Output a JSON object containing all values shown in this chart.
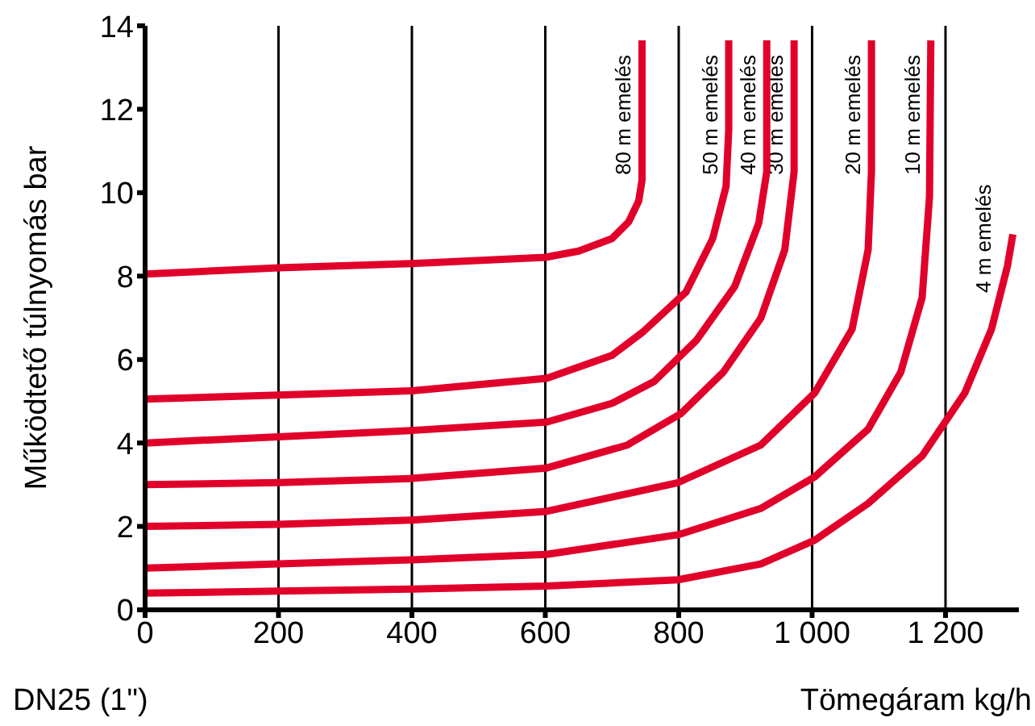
{
  "chart_data": {
    "type": "line",
    "ylabel": "Működtető túlnyomás bar",
    "xlabel": "Tömegáram kg/h",
    "annotations": [
      "DN25 (1\")"
    ],
    "xlim": [
      0,
      1310
    ],
    "xticks": [
      0,
      200,
      400,
      600,
      800,
      {
        "value": 1000,
        "label": "1 000"
      },
      {
        "value": 1200,
        "label": "1 200"
      }
    ],
    "ylim": [
      0,
      14
    ],
    "yticks": [
      0,
      2,
      4,
      6,
      8,
      10,
      12,
      14
    ],
    "grid": true,
    "legend": false,
    "marker": "none",
    "line_style": "solid",
    "series": [
      {
        "name": "80 m emelés",
        "color": "#e0002a",
        "x": [
          0,
          200,
          400,
          600,
          650,
          700,
          725,
          740,
          745,
          745
        ],
        "values": [
          8.05,
          8.2,
          8.3,
          8.45,
          8.6,
          8.9,
          9.3,
          9.8,
          10.3,
          13.65
        ]
      },
      {
        "name": "50 m emelés",
        "color": "#e0002a",
        "x": [
          0,
          200,
          400,
          602,
          700,
          747,
          811,
          851,
          871,
          875,
          875
        ],
        "values": [
          5.05,
          5.15,
          5.25,
          5.55,
          6.1,
          6.67,
          7.62,
          8.9,
          10.15,
          11.5,
          13.65
        ]
      },
      {
        "name": "40 m emelés",
        "color": "#e0002a",
        "x": [
          0,
          200,
          400,
          602,
          700,
          763,
          827,
          884,
          920,
          932,
          932
        ],
        "values": [
          4.0,
          4.15,
          4.3,
          4.5,
          4.95,
          5.47,
          6.47,
          7.75,
          9.27,
          10.5,
          13.65
        ]
      },
      {
        "name": "30 m emelés",
        "color": "#e0002a",
        "x": [
          0,
          200,
          400,
          602,
          723,
          803,
          867,
          923,
          959,
          973,
          973
        ],
        "values": [
          3.0,
          3.05,
          3.15,
          3.4,
          3.95,
          4.7,
          5.7,
          6.99,
          8.63,
          10.5,
          13.65
        ]
      },
      {
        "name": "20 m emelés",
        "color": "#e0002a",
        "x": [
          0,
          200,
          400,
          602,
          799,
          923,
          1004,
          1060,
          1084,
          1089,
          1089
        ],
        "values": [
          2.0,
          2.05,
          2.15,
          2.36,
          3.05,
          3.95,
          5.2,
          6.73,
          8.63,
          10.5,
          13.65
        ]
      },
      {
        "name": "10 m emelés",
        "color": "#e0002a",
        "x": [
          0,
          200,
          400,
          602,
          799,
          923,
          1004,
          1084,
          1133,
          1165,
          1176,
          1178
        ],
        "values": [
          1.0,
          1.1,
          1.2,
          1.33,
          1.8,
          2.43,
          3.19,
          4.33,
          5.7,
          7.49,
          9.9,
          13.65
        ]
      },
      {
        "name": "4 m emelés",
        "color": "#e0002a",
        "x": [
          0,
          200,
          400,
          602,
          799,
          923,
          1004,
          1084,
          1165,
          1229,
          1269,
          1293,
          1301
        ],
        "values": [
          0.4,
          0.45,
          0.5,
          0.57,
          0.72,
          1.1,
          1.67,
          2.55,
          3.69,
          5.2,
          6.73,
          8.25,
          9.0
        ]
      }
    ]
  }
}
